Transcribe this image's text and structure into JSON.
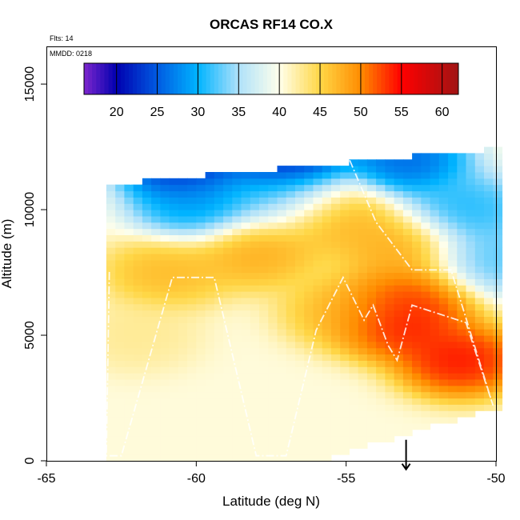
{
  "chart_data": {
    "type": "heatmap",
    "title": "ORCAS RF14 CO.X",
    "flights_label": "Flts: 14",
    "date_label": "MMDD: 0218",
    "xlabel": "Latitude (deg N)",
    "ylabel": "Altitude (m)",
    "xlim": [
      -65,
      -50
    ],
    "ylim": [
      0,
      16500
    ],
    "x_ticks": [
      -65,
      -60,
      -55,
      -50
    ],
    "y_ticks": [
      0,
      5000,
      10000,
      15000
    ],
    "x_tick_labels": [
      "-65",
      "-60",
      "-55",
      "-50"
    ],
    "y_tick_labels": [
      "0",
      "5000",
      "10000",
      "15000"
    ],
    "grid": false,
    "colorbar": {
      "placement": "top",
      "range": [
        16,
        62
      ],
      "ticks": [
        20,
        25,
        30,
        35,
        40,
        45,
        50,
        55,
        60
      ],
      "tick_labels": [
        "20",
        "25",
        "30",
        "35",
        "40",
        "45",
        "50",
        "55",
        "60"
      ]
    },
    "field": {
      "lat_range": [
        -63,
        -50
      ],
      "alt_range": [
        0,
        12500
      ],
      "background_value": 40.5,
      "features": [
        {
          "lat": -60.5,
          "alt": 11800,
          "value": 18
        },
        {
          "lat": -57,
          "alt": 12000,
          "value": 17
        },
        {
          "lat": -53,
          "alt": 12000,
          "value": 23
        },
        {
          "lat": -60,
          "alt": 10200,
          "value": 27
        },
        {
          "lat": -57,
          "alt": 10600,
          "value": 31
        },
        {
          "lat": -51,
          "alt": 10000,
          "value": 29
        },
        {
          "lat": -50.2,
          "alt": 8000,
          "value": 31
        },
        {
          "lat": -55.5,
          "alt": 9800,
          "value": 49
        },
        {
          "lat": -58,
          "alt": 8300,
          "value": 49
        },
        {
          "lat": -61,
          "alt": 7500,
          "value": 48
        },
        {
          "lat": -53.2,
          "alt": 8500,
          "value": 49
        },
        {
          "lat": -53.3,
          "alt": 5500,
          "value": 57
        },
        {
          "lat": -52.8,
          "alt": 6500,
          "value": 54
        },
        {
          "lat": -51.2,
          "alt": 4000,
          "value": 57
        },
        {
          "lat": -55,
          "alt": 6000,
          "value": 48
        },
        {
          "lat": -62,
          "alt": 5000,
          "value": 43
        }
      ]
    },
    "flight_track": [
      {
        "lat": -62.2,
        "alt": 11000
      },
      {
        "lat": -62.0,
        "alt": 12000
      },
      {
        "lat": -55.0,
        "alt": 12300
      },
      {
        "lat": -54.0,
        "alt": 9500
      },
      {
        "lat": -52.8,
        "alt": 7600
      },
      {
        "lat": -51.5,
        "alt": 7600
      },
      {
        "lat": -50.1,
        "alt": 2200
      },
      {
        "lat": -51.0,
        "alt": 5500
      },
      {
        "lat": -52.8,
        "alt": 6200
      },
      {
        "lat": -53.3,
        "alt": 4000
      },
      {
        "lat": -53.6,
        "alt": 4600
      },
      {
        "lat": -54.1,
        "alt": 6200
      },
      {
        "lat": -54.4,
        "alt": 5600
      },
      {
        "lat": -55.1,
        "alt": 7300
      },
      {
        "lat": -56.0,
        "alt": 5200
      },
      {
        "lat": -57.0,
        "alt": 200
      },
      {
        "lat": -58.0,
        "alt": 200
      },
      {
        "lat": -59.4,
        "alt": 7300
      },
      {
        "lat": -60.8,
        "alt": 7300
      },
      {
        "lat": -62.5,
        "alt": 200
      },
      {
        "lat": -63.0,
        "alt": 200
      },
      {
        "lat": -62.9,
        "alt": 7600
      }
    ],
    "marker": {
      "lat": -53,
      "alt": 200,
      "shape": "arrow"
    }
  }
}
